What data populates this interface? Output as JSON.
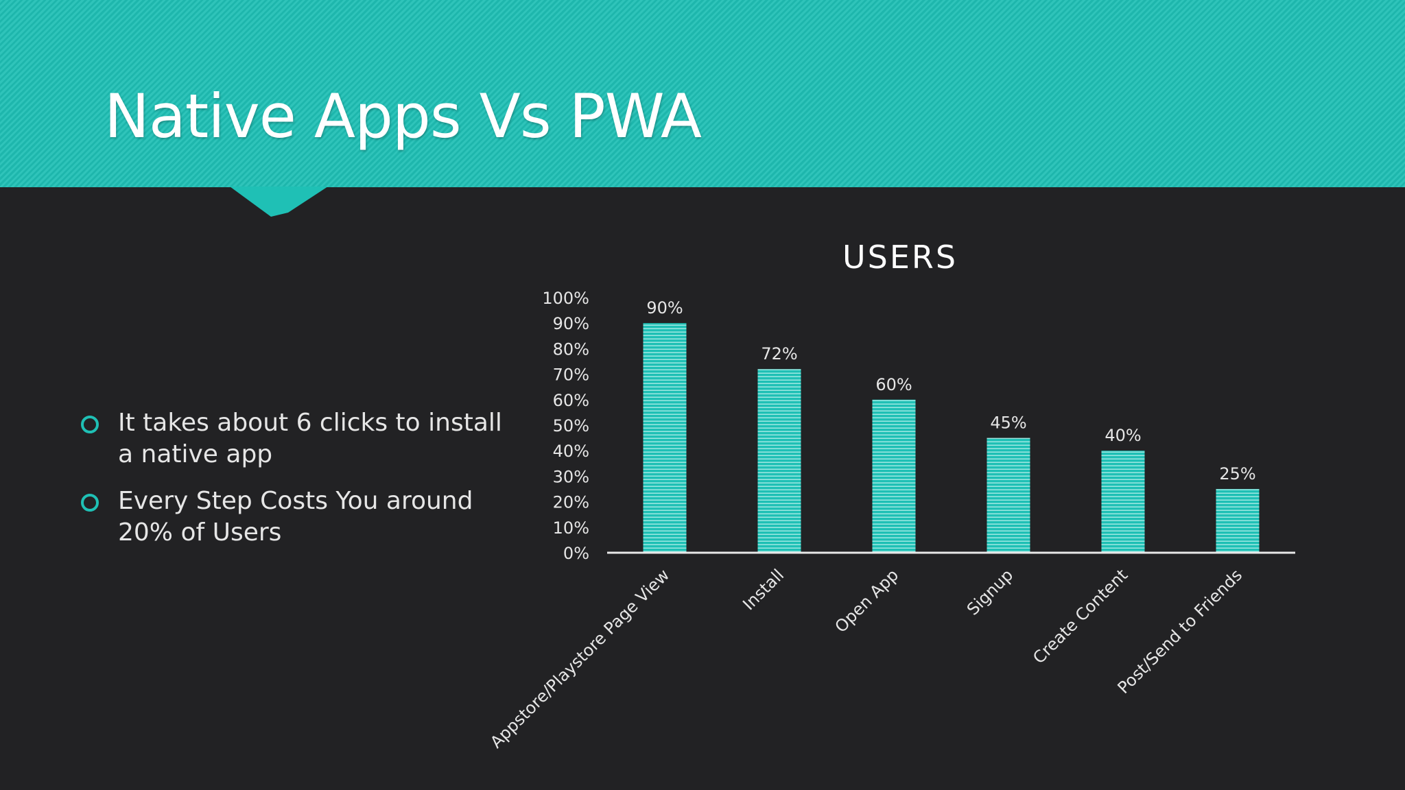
{
  "slide": {
    "title": "Native Apps Vs PWA",
    "bullets": [
      "It takes about 6 clicks to install a native app",
      "Every Step Costs You around 20% of Users"
    ]
  },
  "colors": {
    "accent": "#1fc0b5",
    "background": "#222224",
    "text": "#ffffff"
  },
  "chart_data": {
    "type": "bar",
    "title": "USERS",
    "categories": [
      "Appstore/Playstore Page View",
      "Install",
      "Open App",
      "Signup",
      "Create Content",
      "Post/Send to Friends"
    ],
    "values": [
      90,
      72,
      60,
      45,
      40,
      25
    ],
    "data_labels": [
      "90%",
      "72%",
      "60%",
      "45%",
      "40%",
      "25%"
    ],
    "yticks": [
      "0%",
      "10%",
      "20%",
      "30%",
      "40%",
      "50%",
      "60%",
      "70%",
      "80%",
      "90%",
      "100%"
    ],
    "ylim": [
      0,
      100
    ],
    "xlabel": "",
    "ylabel": "",
    "grid": false,
    "legend": "none"
  }
}
